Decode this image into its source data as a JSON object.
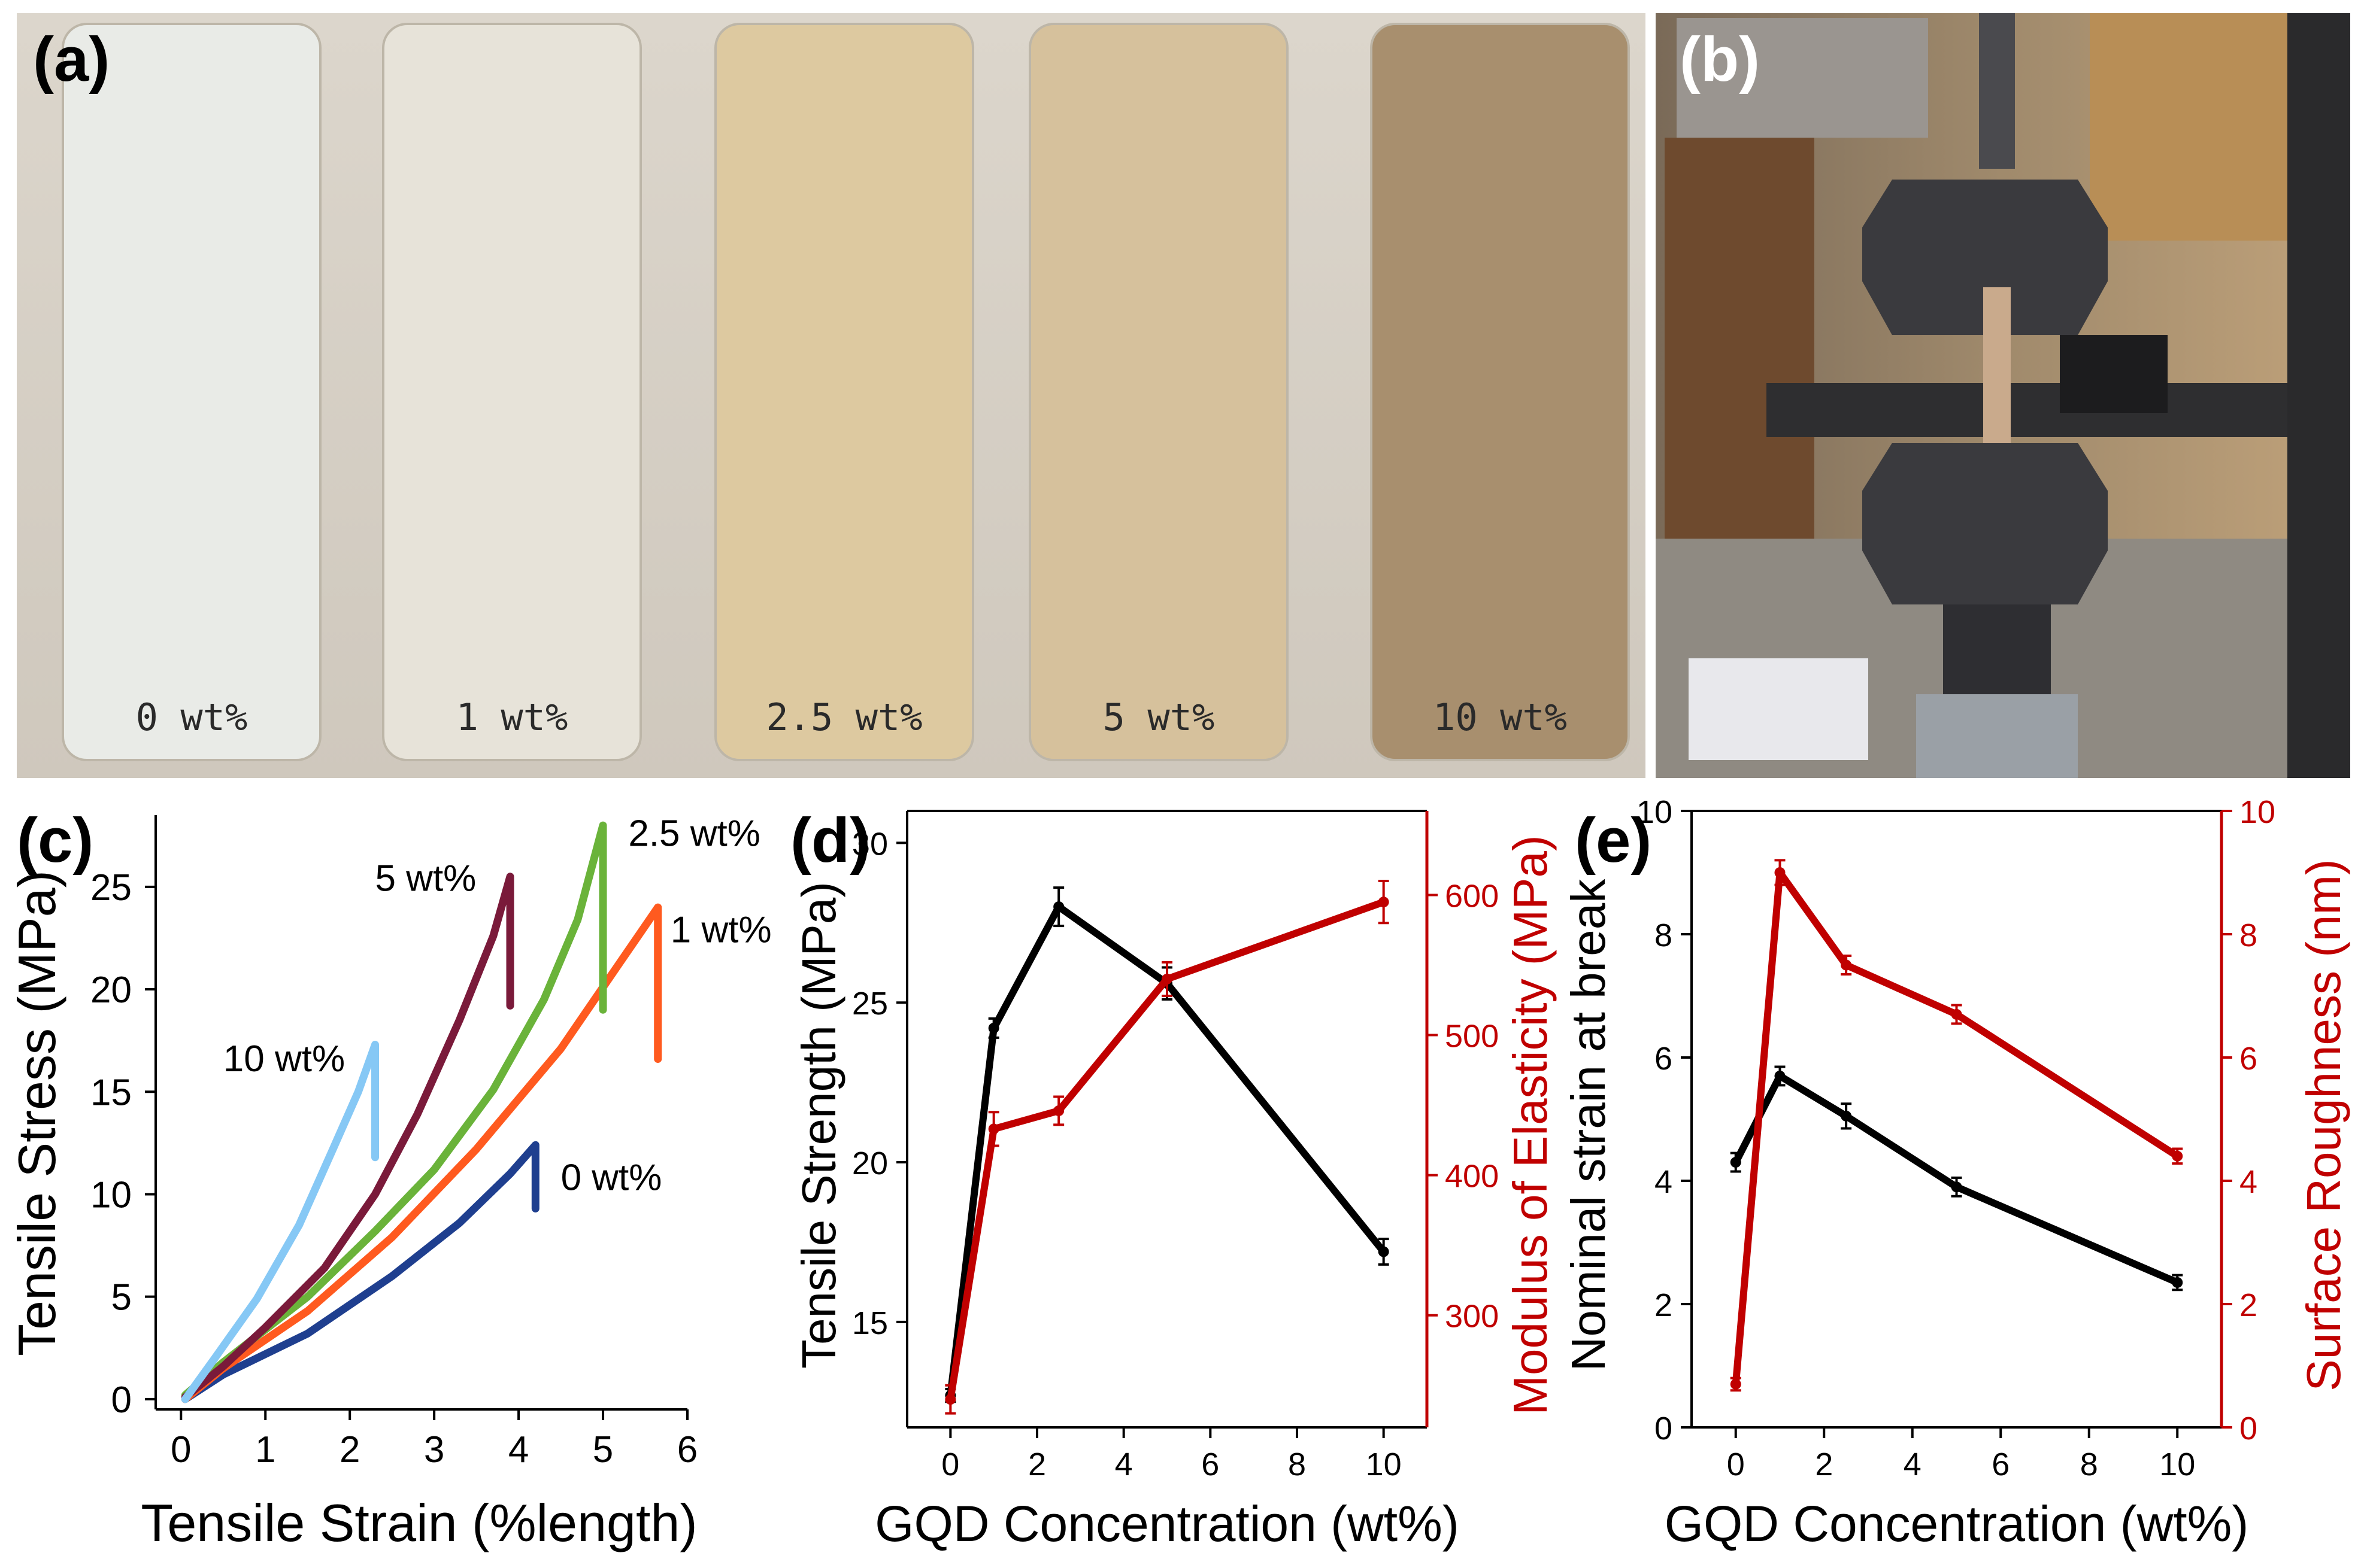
{
  "colors": {
    "red": "#c00000",
    "black": "#000000",
    "c0": "#1f3f8f",
    "c1": "#ff5a1f",
    "c25": "#6ab33a",
    "c5": "#7a1a3a",
    "c10": "#86c8f5"
  },
  "panel_a": {
    "label": "(a)",
    "samples": [
      "0 wt%",
      "1 wt%",
      "2.5 wt%",
      "5 wt%",
      "10 wt%"
    ],
    "sample_colors": [
      "#e9ebe7",
      "#e7e3d9",
      "#ddc9a0",
      "#d6c19c",
      "#a88f6e"
    ]
  },
  "panel_b": {
    "label": "(b)"
  },
  "chart_data": [
    {
      "panel": "(c)",
      "type": "line",
      "xlabel": "Tensile Strain (%length)",
      "ylabel": "Tensile Stress (MPa)",
      "xlim": [
        -0.3,
        6
      ],
      "ylim": [
        -0.5,
        28.5
      ],
      "xticks": [
        0,
        1,
        2,
        3,
        4,
        5,
        6
      ],
      "yticks": [
        0,
        5,
        10,
        15,
        20,
        25
      ],
      "series": [
        {
          "name": "0 wt%",
          "color": "#1f3f8f",
          "x": [
            0.05,
            0.5,
            1.5,
            2.5,
            3.3,
            3.9,
            4.2,
            4.2
          ],
          "y": [
            0,
            1.2,
            3.2,
            6.0,
            8.6,
            11.0,
            12.4,
            9.3
          ],
          "label_x": 4.5,
          "label_y": 10.2
        },
        {
          "name": "1 wt%",
          "color": "#ff5a1f",
          "x": [
            0.05,
            0.5,
            1.5,
            2.5,
            3.5,
            4.5,
            5.2,
            5.65,
            5.65
          ],
          "y": [
            0,
            1.5,
            4.3,
            7.9,
            12.2,
            17.1,
            21.3,
            24.0,
            16.6
          ],
          "label_x": 5.8,
          "label_y": 22.3
        },
        {
          "name": "2.5 wt%",
          "color": "#6ab33a",
          "x": [
            0.05,
            0.5,
            1.5,
            2.3,
            3.0,
            3.7,
            4.3,
            4.7,
            5.0,
            5.0
          ],
          "y": [
            0.2,
            1.8,
            5.0,
            8.2,
            11.2,
            15.1,
            19.5,
            23.4,
            28.0,
            19.0
          ],
          "label_x": 5.3,
          "label_y": 27.0
        },
        {
          "name": "5 wt%",
          "color": "#7a1a3a",
          "x": [
            0.05,
            0.5,
            1.0,
            1.7,
            2.3,
            2.8,
            3.3,
            3.7,
            3.9,
            3.9
          ],
          "y": [
            0.1,
            1.6,
            3.5,
            6.4,
            10.0,
            13.9,
            18.5,
            22.6,
            25.5,
            19.2
          ],
          "label_x": 2.3,
          "label_y": 24.8
        },
        {
          "name": "10 wt%",
          "color": "#86c8f5",
          "x": [
            0.05,
            0.4,
            0.9,
            1.4,
            1.8,
            2.1,
            2.3,
            2.3
          ],
          "y": [
            0,
            2.0,
            4.9,
            8.5,
            12.2,
            15.0,
            17.3,
            11.8
          ],
          "label_x": 0.5,
          "label_y": 16.0
        }
      ]
    },
    {
      "panel": "(d)",
      "type": "line",
      "xlabel": "GQD Concentration (wt%)",
      "ylabel_left": "Tensile Strength (MPa)",
      "ylabel_right": "Modulus of Elasticity (MPa)",
      "xlim": [
        -1,
        11
      ],
      "ylim_left": [
        11.7,
        31
      ],
      "ylim_right": [
        220,
        660
      ],
      "xticks": [
        0,
        2,
        4,
        6,
        8,
        10
      ],
      "yticks_left": [
        15,
        20,
        25,
        30
      ],
      "yticks_right": [
        300,
        400,
        500,
        600
      ],
      "series": [
        {
          "name": "Tensile Strength",
          "axis": "left",
          "color": "#000000",
          "x": [
            0,
            1,
            2.5,
            5,
            10
          ],
          "y": [
            12.7,
            24.2,
            28.0,
            25.6,
            17.2
          ],
          "err": [
            0.2,
            0.3,
            0.6,
            0.5,
            0.4
          ]
        },
        {
          "name": "Modulus of Elasticity",
          "axis": "right",
          "color": "#c00000",
          "x": [
            0,
            1,
            2.5,
            5,
            10
          ],
          "y": [
            240,
            433,
            446,
            540,
            595
          ],
          "err": [
            10,
            12,
            10,
            12,
            15
          ]
        }
      ]
    },
    {
      "panel": "(e)",
      "type": "line",
      "xlabel": "GQD Concentration (wt%)",
      "ylabel_left": "Nominal strain at break",
      "ylabel_right": "Surface Roughness (nm)",
      "xlim": [
        -1,
        11
      ],
      "ylim_left": [
        0,
        10
      ],
      "ylim_right": [
        0,
        10
      ],
      "xticks": [
        0,
        2,
        4,
        6,
        8,
        10
      ],
      "yticks_left": [
        0,
        2,
        4,
        6,
        8,
        10
      ],
      "yticks_right": [
        0,
        2,
        4,
        6,
        8,
        10
      ],
      "series": [
        {
          "name": "Nominal strain at break",
          "axis": "left",
          "color": "#000000",
          "x": [
            0,
            1,
            2.5,
            5,
            10
          ],
          "y": [
            4.3,
            5.7,
            5.05,
            3.9,
            2.35
          ],
          "err": [
            0.15,
            0.15,
            0.2,
            0.15,
            0.12
          ]
        },
        {
          "name": "Surface Roughness",
          "axis": "right",
          "color": "#c00000",
          "x": [
            0,
            1,
            2.5,
            5,
            10
          ],
          "y": [
            0.7,
            9.0,
            7.5,
            6.7,
            4.4
          ],
          "err": [
            0.1,
            0.2,
            0.15,
            0.15,
            0.12
          ]
        }
      ]
    }
  ]
}
